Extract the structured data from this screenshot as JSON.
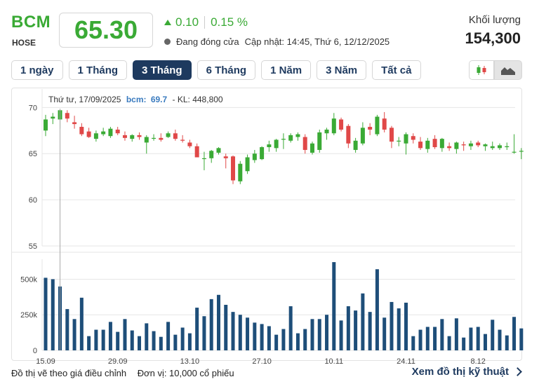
{
  "header": {
    "ticker": "BCM",
    "exchange": "HOSE",
    "price": "65.30",
    "change": "0.10",
    "change_pct": "0.15 %",
    "status": "Đang đóng cửa",
    "updated": "Cập nhật: 14:45, Thứ 6, 12/12/2025",
    "volume_label": "Khối lượng",
    "volume": "154,300"
  },
  "tabs": [
    "1 ngày",
    "1 Tháng",
    "3 Tháng",
    "6 Tháng",
    "1 Năm",
    "3 Năm",
    "Tất cả"
  ],
  "active_tab": 2,
  "chart_type_buttons": [
    "candlestick-icon",
    "area-chart-icon"
  ],
  "colors": {
    "up": "#3aaa35",
    "down": "#e04848",
    "volume": "#1e4e79",
    "accent": "#1e3a5f"
  },
  "tooltip": {
    "date": "Thứ tư, 17/09/2025",
    "series": "bcm:",
    "value": "69.7",
    "vol": "- KL: 448,800"
  },
  "footer": {
    "note": "Đồ thị vẽ theo giá điều chỉnh",
    "unit": "Đơn vị: 10,000 cổ phiếu",
    "link": "Xem đồ thị kỹ thuật"
  },
  "chart_data": {
    "type": "candlestick",
    "price_ylim": [
      55,
      72
    ],
    "price_ticks": [
      "70",
      "65",
      "60",
      "55"
    ],
    "volume_ylim": [
      0,
      640000
    ],
    "volume_ticks": [
      "500k",
      "250k",
      "0"
    ],
    "x_ticks": [
      {
        "label": "15.09",
        "index": 0
      },
      {
        "label": "29.09",
        "index": 10
      },
      {
        "label": "13.10",
        "index": 20
      },
      {
        "label": "27.10",
        "index": 30
      },
      {
        "label": "10.11",
        "index": 40
      },
      {
        "label": "24.11",
        "index": 50
      },
      {
        "label": "8.12",
        "index": 60
      }
    ],
    "highlight_index": 2,
    "candles": [
      {
        "o": 67.5,
        "h": 69.2,
        "l": 66.9,
        "c": 68.7,
        "v": 510000
      },
      {
        "o": 68.8,
        "h": 69.4,
        "l": 68.2,
        "c": 69.0,
        "v": 500000
      },
      {
        "o": 68.7,
        "h": 69.7,
        "l": 67.7,
        "c": 69.7,
        "v": 448800
      },
      {
        "o": 69.4,
        "h": 69.7,
        "l": 68.4,
        "c": 68.8,
        "v": 290000
      },
      {
        "o": 68.4,
        "h": 69.1,
        "l": 67.7,
        "c": 68.2,
        "v": 220000
      },
      {
        "o": 67.9,
        "h": 68.3,
        "l": 66.9,
        "c": 67.1,
        "v": 370000
      },
      {
        "o": 67.4,
        "h": 67.8,
        "l": 66.7,
        "c": 66.8,
        "v": 100000
      },
      {
        "o": 66.6,
        "h": 67.5,
        "l": 66.3,
        "c": 67.2,
        "v": 145000
      },
      {
        "o": 67.1,
        "h": 67.8,
        "l": 66.9,
        "c": 67.4,
        "v": 145000
      },
      {
        "o": 66.9,
        "h": 67.9,
        "l": 66.7,
        "c": 67.7,
        "v": 200000
      },
      {
        "o": 67.6,
        "h": 67.9,
        "l": 67.0,
        "c": 67.2,
        "v": 130000
      },
      {
        "o": 67.0,
        "h": 67.4,
        "l": 66.4,
        "c": 66.7,
        "v": 220000
      },
      {
        "o": 66.6,
        "h": 67.1,
        "l": 66.3,
        "c": 67.0,
        "v": 140000
      },
      {
        "o": 67.0,
        "h": 67.3,
        "l": 66.5,
        "c": 66.8,
        "v": 100000
      },
      {
        "o": 66.2,
        "h": 67.0,
        "l": 65.0,
        "c": 66.8,
        "v": 190000
      },
      {
        "o": 66.7,
        "h": 67.1,
        "l": 66.4,
        "c": 66.7,
        "v": 135000
      },
      {
        "o": 66.7,
        "h": 67.2,
        "l": 66.3,
        "c": 66.5,
        "v": 95000
      },
      {
        "o": 66.8,
        "h": 67.4,
        "l": 66.7,
        "c": 67.2,
        "v": 200000
      },
      {
        "o": 67.2,
        "h": 67.6,
        "l": 66.4,
        "c": 66.6,
        "v": 110000
      },
      {
        "o": 66.5,
        "h": 67.0,
        "l": 66.2,
        "c": 66.4,
        "v": 160000
      },
      {
        "o": 66.2,
        "h": 66.5,
        "l": 65.6,
        "c": 65.8,
        "v": 120000
      },
      {
        "o": 65.8,
        "h": 66.1,
        "l": 64.6,
        "c": 64.6,
        "v": 300000
      },
      {
        "o": 64.5,
        "h": 65.2,
        "l": 63.2,
        "c": 64.5,
        "v": 240000
      },
      {
        "o": 64.5,
        "h": 65.4,
        "l": 64.0,
        "c": 65.3,
        "v": 360000
      },
      {
        "o": 65.1,
        "h": 65.7,
        "l": 64.9,
        "c": 65.6,
        "v": 390000
      },
      {
        "o": 64.7,
        "h": 65.0,
        "l": 63.4,
        "c": 64.5,
        "v": 320000
      },
      {
        "o": 64.7,
        "h": 64.8,
        "l": 61.7,
        "c": 62.1,
        "v": 270000
      },
      {
        "o": 62.0,
        "h": 64.2,
        "l": 61.7,
        "c": 63.9,
        "v": 250000
      },
      {
        "o": 63.1,
        "h": 64.9,
        "l": 62.8,
        "c": 64.6,
        "v": 230000
      },
      {
        "o": 64.3,
        "h": 65.4,
        "l": 64.0,
        "c": 65.0,
        "v": 195000
      },
      {
        "o": 64.4,
        "h": 65.8,
        "l": 64.3,
        "c": 65.7,
        "v": 185000
      },
      {
        "o": 65.7,
        "h": 66.4,
        "l": 65.2,
        "c": 66.0,
        "v": 170000
      },
      {
        "o": 65.6,
        "h": 66.6,
        "l": 65.2,
        "c": 66.5,
        "v": 110000
      },
      {
        "o": 66.6,
        "h": 67.2,
        "l": 65.5,
        "c": 66.6,
        "v": 150000
      },
      {
        "o": 66.4,
        "h": 67.2,
        "l": 66.2,
        "c": 67.0,
        "v": 310000
      },
      {
        "o": 66.8,
        "h": 67.3,
        "l": 66.4,
        "c": 67.1,
        "v": 120000
      },
      {
        "o": 66.8,
        "h": 67.1,
        "l": 65.0,
        "c": 65.4,
        "v": 150000
      },
      {
        "o": 65.1,
        "h": 66.3,
        "l": 64.9,
        "c": 66.1,
        "v": 220000
      },
      {
        "o": 65.4,
        "h": 67.6,
        "l": 65.1,
        "c": 67.3,
        "v": 220000
      },
      {
        "o": 67.2,
        "h": 67.8,
        "l": 66.5,
        "c": 67.6,
        "v": 250000
      },
      {
        "o": 67.2,
        "h": 69.4,
        "l": 67.0,
        "c": 68.8,
        "v": 620000
      },
      {
        "o": 68.7,
        "h": 68.9,
        "l": 67.4,
        "c": 67.6,
        "v": 210000
      },
      {
        "o": 68.0,
        "h": 68.2,
        "l": 65.6,
        "c": 66.1,
        "v": 310000
      },
      {
        "o": 65.4,
        "h": 66.7,
        "l": 65.1,
        "c": 66.4,
        "v": 280000
      },
      {
        "o": 66.1,
        "h": 68.4,
        "l": 65.9,
        "c": 67.8,
        "v": 400000
      },
      {
        "o": 67.9,
        "h": 68.3,
        "l": 67.0,
        "c": 67.6,
        "v": 270000
      },
      {
        "o": 67.1,
        "h": 69.2,
        "l": 66.9,
        "c": 69.0,
        "v": 570000
      },
      {
        "o": 68.8,
        "h": 69.5,
        "l": 67.3,
        "c": 67.6,
        "v": 230000
      },
      {
        "o": 67.8,
        "h": 68.0,
        "l": 65.6,
        "c": 66.3,
        "v": 340000
      },
      {
        "o": 66.4,
        "h": 66.8,
        "l": 65.8,
        "c": 66.4,
        "v": 295000
      },
      {
        "o": 66.1,
        "h": 67.3,
        "l": 64.9,
        "c": 67.1,
        "v": 335000
      },
      {
        "o": 66.9,
        "h": 67.2,
        "l": 66.1,
        "c": 66.5,
        "v": 100000
      },
      {
        "o": 66.3,
        "h": 66.8,
        "l": 65.4,
        "c": 65.6,
        "v": 145000
      },
      {
        "o": 65.5,
        "h": 66.7,
        "l": 65.1,
        "c": 66.4,
        "v": 165000
      },
      {
        "o": 66.6,
        "h": 67.0,
        "l": 65.5,
        "c": 65.7,
        "v": 165000
      },
      {
        "o": 65.6,
        "h": 66.7,
        "l": 65.2,
        "c": 66.6,
        "v": 220000
      },
      {
        "o": 65.8,
        "h": 66.2,
        "l": 65.3,
        "c": 65.6,
        "v": 100000
      },
      {
        "o": 65.5,
        "h": 66.3,
        "l": 65.0,
        "c": 66.2,
        "v": 225000
      },
      {
        "o": 66.0,
        "h": 66.3,
        "l": 65.3,
        "c": 65.9,
        "v": 90000
      },
      {
        "o": 65.8,
        "h": 66.4,
        "l": 65.4,
        "c": 66.1,
        "v": 160000
      },
      {
        "o": 66.2,
        "h": 66.4,
        "l": 65.7,
        "c": 65.9,
        "v": 165000
      },
      {
        "o": 65.8,
        "h": 66.1,
        "l": 65.3,
        "c": 66.0,
        "v": 115000
      },
      {
        "o": 65.6,
        "h": 66.3,
        "l": 65.4,
        "c": 65.8,
        "v": 215000
      },
      {
        "o": 65.6,
        "h": 66.1,
        "l": 65.4,
        "c": 65.9,
        "v": 145000
      },
      {
        "o": 65.7,
        "h": 66.2,
        "l": 65.4,
        "c": 65.8,
        "v": 105000
      },
      {
        "o": 65.2,
        "h": 67.1,
        "l": 65.0,
        "c": 65.2,
        "v": 235000
      },
      {
        "o": 65.3,
        "h": 65.6,
        "l": 64.4,
        "c": 65.3,
        "v": 154300
      }
    ]
  }
}
